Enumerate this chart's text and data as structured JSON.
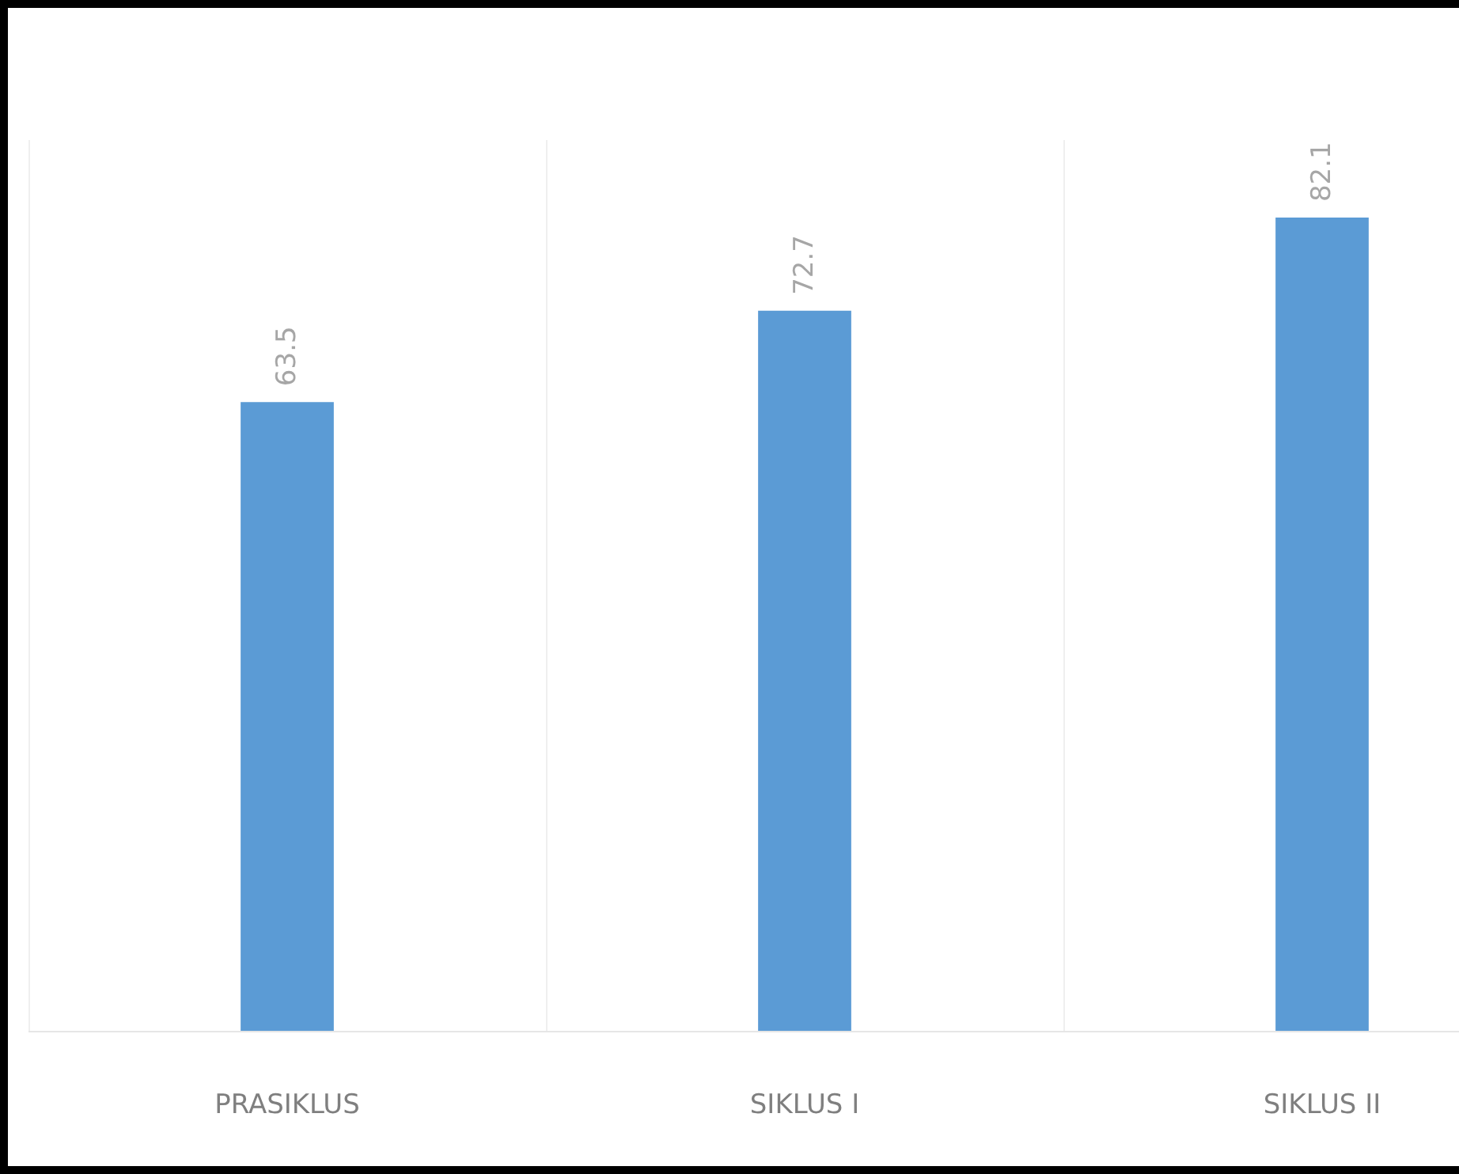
{
  "chart_data": {
    "type": "bar",
    "categories": [
      "PRASIKLUS",
      "SIKLUS I",
      "SIKLUS II"
    ],
    "values": [
      63.5,
      72.7,
      82.1
    ],
    "color": "#5b9bd5",
    "ylim": [
      0,
      90
    ],
    "data_labels": true,
    "grid": "x",
    "tick_labels": "x"
  }
}
